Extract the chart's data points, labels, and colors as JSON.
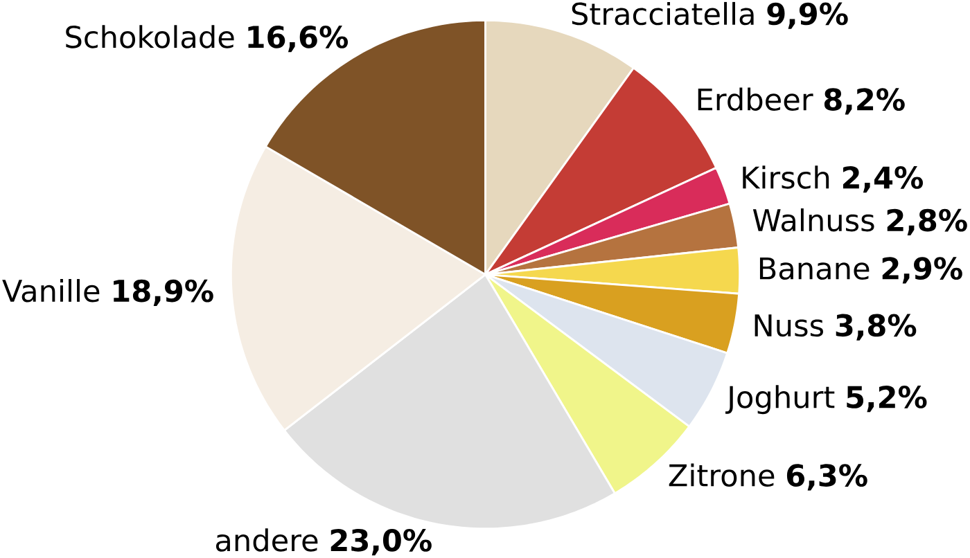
{
  "chart_data": {
    "type": "pie",
    "categories": [
      "Stracciatella",
      "Erdbeer",
      "Kirsch",
      "Walnuss",
      "Banane",
      "Nuss",
      "Joghurt",
      "Zitrone",
      "andere",
      "Vanille",
      "Schokolade"
    ],
    "values": [
      9.9,
      8.2,
      2.4,
      2.8,
      2.9,
      3.8,
      5.2,
      6.3,
      23.0,
      18.9,
      16.6
    ],
    "value_labels": [
      "9,9%",
      "8,2%",
      "2,4%",
      "2,8%",
      "2,9%",
      "3,8%",
      "5,2%",
      "6,3%",
      "23,0%",
      "18,9%",
      "16,6%"
    ],
    "colors": [
      "#e6d8bd",
      "#c43c35",
      "#d92c5a",
      "#b5733f",
      "#f5d84e",
      "#d9a020",
      "#dde4ee",
      "#f0f58a",
      "#e0e0e0",
      "#f5ede3",
      "#7f5327"
    ]
  }
}
